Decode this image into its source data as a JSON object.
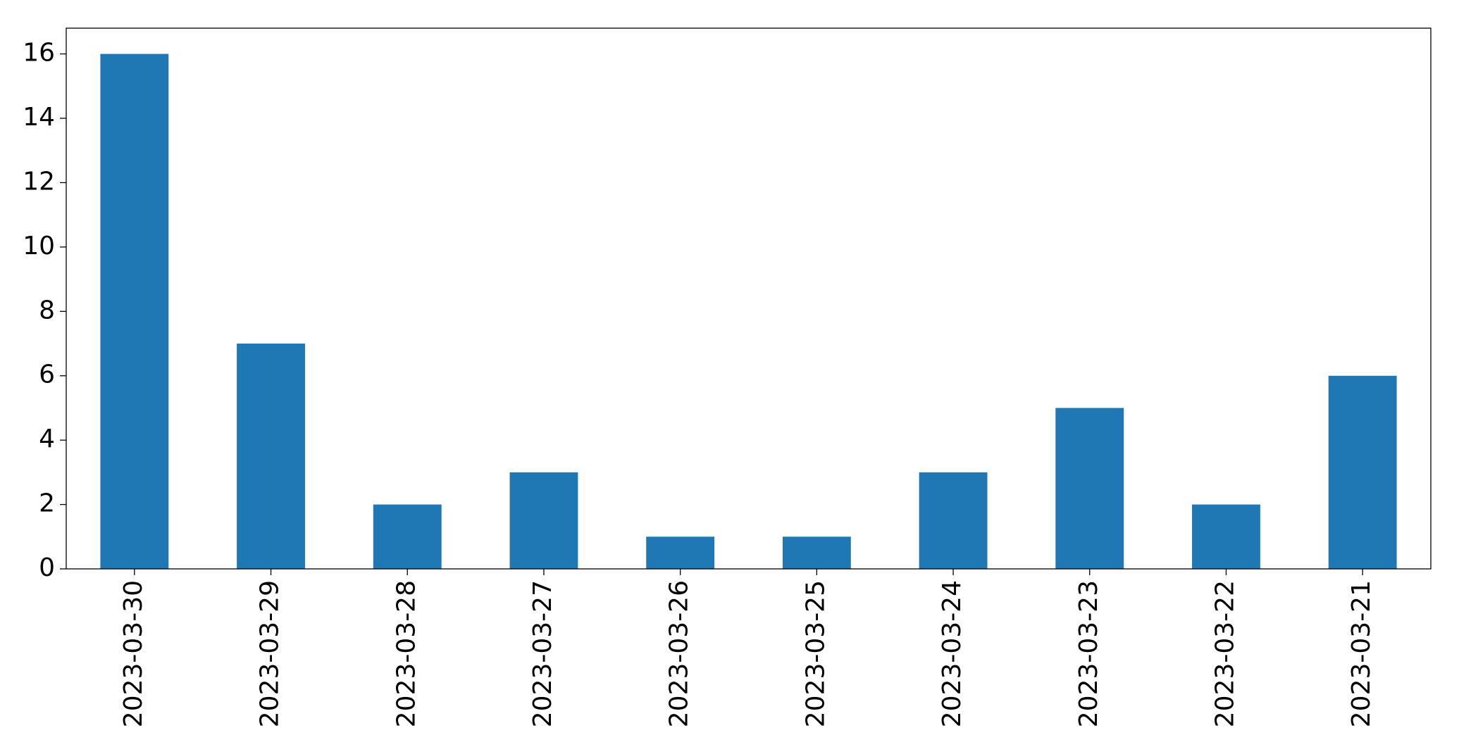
{
  "chart_data": {
    "type": "bar",
    "categories": [
      "2023-03-30",
      "2023-03-29",
      "2023-03-28",
      "2023-03-27",
      "2023-03-26",
      "2023-03-25",
      "2023-03-24",
      "2023-03-23",
      "2023-03-22",
      "2023-03-21"
    ],
    "values": [
      16,
      7,
      2,
      3,
      1,
      1,
      3,
      5,
      2,
      6
    ],
    "color": "#1f77b4",
    "ylim": [
      0,
      16.8
    ],
    "yticks": [
      0,
      2,
      4,
      6,
      8,
      10,
      12,
      14,
      16
    ],
    "grid": false
  }
}
